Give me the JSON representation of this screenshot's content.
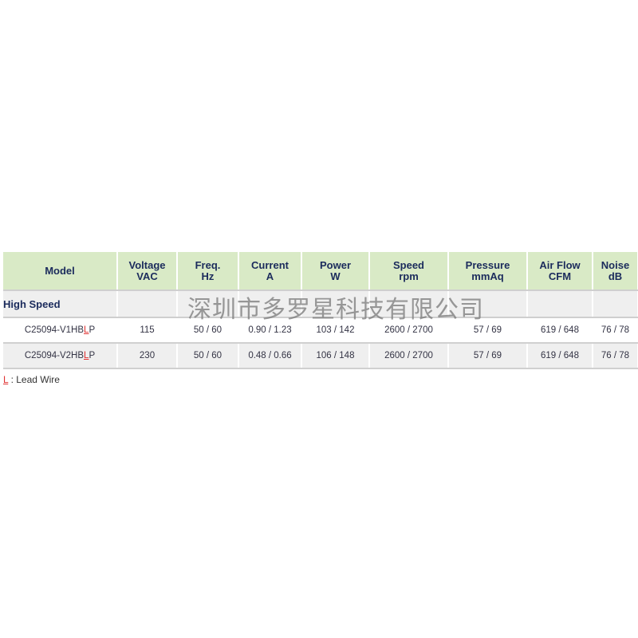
{
  "headers": [
    [
      "Model",
      ""
    ],
    [
      "Voltage",
      "VAC"
    ],
    [
      "Freq.",
      "Hz"
    ],
    [
      "Current",
      "A"
    ],
    [
      "Power",
      "W"
    ],
    [
      "Speed",
      "rpm"
    ],
    [
      "Pressure",
      "mmAq"
    ],
    [
      "Air Flow",
      "CFM"
    ],
    [
      "Noise",
      "dB"
    ]
  ],
  "group_label": "High Speed",
  "rows": [
    {
      "model_pre": "C25094-V1HB",
      "model_l": "L",
      "model_post": "P",
      "cells": [
        "115",
        "50 / 60",
        "0.90 / 1.23",
        "103 / 142",
        "2600 / 2700",
        "57 / 69",
        "619 / 648",
        "76 / 78"
      ]
    },
    {
      "model_pre": "C25094-V2HB",
      "model_l": "L",
      "model_post": "P",
      "cells": [
        "230",
        "50 / 60",
        "0.48 / 0.66",
        "106 / 148",
        "2600 / 2700",
        "57 / 69",
        "619 / 648",
        "76 / 78"
      ]
    }
  ],
  "note": {
    "key": "L",
    "text": " : Lead Wire"
  },
  "watermark": "深圳市多罗星科技有限公司",
  "colors": {
    "header_bg": "#d9eac6",
    "header_text": "#1b2b5c",
    "accent_red": "#e03030"
  }
}
